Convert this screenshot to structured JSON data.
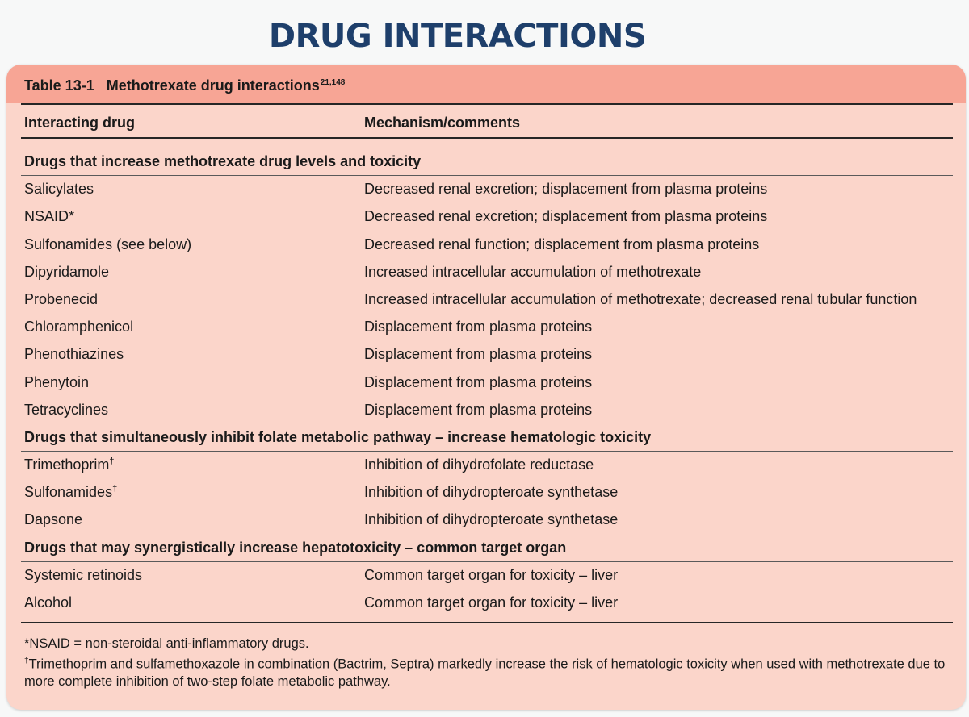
{
  "slide_title": "DRUG INTERACTIONS",
  "table": {
    "caption_label": "Table 13-1",
    "caption_text": "Methotrexate drug interactions",
    "caption_refs": "21,148",
    "col_drug": "Interacting drug",
    "col_mechanism": "Mechanism/comments",
    "sections": [
      {
        "heading": "Drugs that increase methotrexate drug levels and toxicity",
        "rows": [
          {
            "drug": "Salicylates",
            "mark": "",
            "mechanism": "Decreased renal excretion; displacement from plasma proteins"
          },
          {
            "drug": "NSAID*",
            "mark": "",
            "mechanism": "Decreased renal excretion; displacement from plasma proteins"
          },
          {
            "drug": "Sulfonamides (see below)",
            "mark": "",
            "mechanism": "Decreased renal function; displacement from plasma proteins"
          },
          {
            "drug": "Dipyridamole",
            "mark": "",
            "mechanism": "Increased intracellular accumulation of methotrexate"
          },
          {
            "drug": "Probenecid",
            "mark": "",
            "mechanism": "Increased intracellular accumulation of methotrexate; decreased renal tubular function"
          },
          {
            "drug": "Chloramphenicol",
            "mark": "",
            "mechanism": "Displacement from plasma proteins"
          },
          {
            "drug": "Phenothiazines",
            "mark": "",
            "mechanism": "Displacement from plasma proteins"
          },
          {
            "drug": "Phenytoin",
            "mark": "",
            "mechanism": "Displacement from plasma proteins"
          },
          {
            "drug": "Tetracyclines",
            "mark": "",
            "mechanism": "Displacement from plasma proteins"
          }
        ]
      },
      {
        "heading": "Drugs that simultaneously inhibit folate metabolic pathway – increase hematologic toxicity",
        "rows": [
          {
            "drug": "Trimethoprim",
            "mark": "†",
            "mechanism": "Inhibition of dihydrofolate reductase"
          },
          {
            "drug": "Sulfonamides",
            "mark": "†",
            "mechanism": "Inhibition of dihydropteroate synthetase"
          },
          {
            "drug": "Dapsone",
            "mark": "",
            "mechanism": "Inhibition of dihydropteroate synthetase"
          }
        ]
      },
      {
        "heading": "Drugs that may synergistically increase hepatotoxicity – common target organ",
        "rows": [
          {
            "drug": "Systemic retinoids",
            "mark": "",
            "mechanism": "Common target organ for toxicity – liver"
          },
          {
            "drug": "Alcohol",
            "mark": "",
            "mechanism": "Common target organ for toxicity – liver"
          }
        ]
      }
    ],
    "footnotes": {
      "nsaid": "*NSAID = non-steroidal anti-inflammatory drugs.",
      "dagger_mark": "†",
      "dagger_text": "Trimethoprim and sulfamethoxazole in combination (Bactrim, Septra) markedly increase the risk of hematologic toxicity when used with methotrexate due to more complete inhibition of two-step folate metabolic pathway."
    }
  }
}
